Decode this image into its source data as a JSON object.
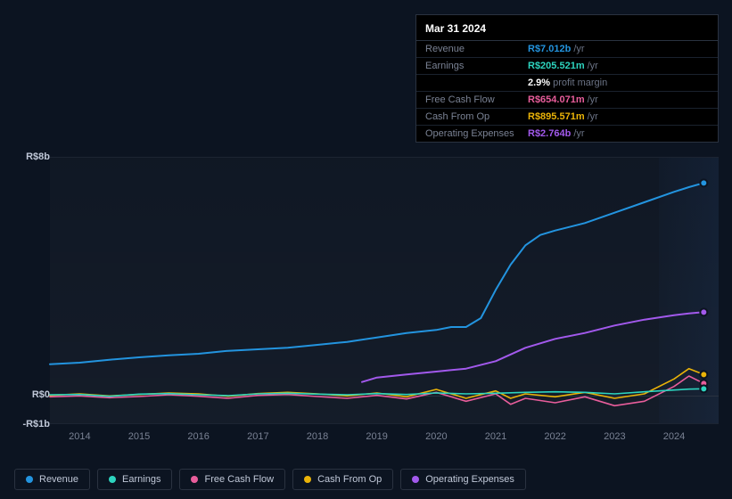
{
  "tooltip": {
    "date": "Mar 31 2024",
    "rows": [
      {
        "label": "Revenue",
        "value": "R$7.012b",
        "unit": "/yr",
        "color": "#2394df"
      },
      {
        "label": "Earnings",
        "value": "R$205.521m",
        "unit": "/yr",
        "color": "#2dd4bf"
      },
      {
        "label": "",
        "value": "2.9%",
        "unit": "profit margin",
        "color": "#ffffff"
      },
      {
        "label": "Free Cash Flow",
        "value": "R$654.071m",
        "unit": "/yr",
        "color": "#e85d9b"
      },
      {
        "label": "Cash From Op",
        "value": "R$895.571m",
        "unit": "/yr",
        "color": "#eab308"
      },
      {
        "label": "Operating Expenses",
        "value": "R$2.764b",
        "unit": "/yr",
        "color": "#a259ec"
      }
    ]
  },
  "chart": {
    "type": "line",
    "background_color": "#0c1421",
    "plot_bg": "rgba(255,255,255,0.02)",
    "grid_color": "#1c2432",
    "y_axis": {
      "min": -1,
      "max": 8,
      "ticks": [
        {
          "v": 8,
          "label": "R$8b"
        },
        {
          "v": 0,
          "label": "R$0"
        },
        {
          "v": -1,
          "label": "-R$1b"
        }
      ]
    },
    "x_axis": {
      "min": 2013.5,
      "max": 2024.75,
      "ticks": [
        2014,
        2015,
        2016,
        2017,
        2018,
        2019,
        2020,
        2021,
        2022,
        2023,
        2024
      ]
    },
    "future_from": 2023.75,
    "series": [
      {
        "name": "Revenue",
        "color": "#2394df",
        "width": 2,
        "points": [
          [
            2013.5,
            1.05
          ],
          [
            2014,
            1.1
          ],
          [
            2014.5,
            1.2
          ],
          [
            2015,
            1.28
          ],
          [
            2015.5,
            1.35
          ],
          [
            2016,
            1.4
          ],
          [
            2016.5,
            1.5
          ],
          [
            2017,
            1.55
          ],
          [
            2017.5,
            1.6
          ],
          [
            2018,
            1.7
          ],
          [
            2018.5,
            1.8
          ],
          [
            2019,
            1.95
          ],
          [
            2019.5,
            2.1
          ],
          [
            2020,
            2.2
          ],
          [
            2020.25,
            2.3
          ],
          [
            2020.5,
            2.3
          ],
          [
            2020.75,
            2.6
          ],
          [
            2021,
            3.55
          ],
          [
            2021.25,
            4.4
          ],
          [
            2021.5,
            5.05
          ],
          [
            2021.75,
            5.4
          ],
          [
            2022,
            5.55
          ],
          [
            2022.5,
            5.8
          ],
          [
            2023,
            6.15
          ],
          [
            2023.5,
            6.5
          ],
          [
            2024,
            6.85
          ],
          [
            2024.25,
            7.01
          ],
          [
            2024.5,
            7.15
          ]
        ]
      },
      {
        "name": "Operating Expenses",
        "color": "#a259ec",
        "width": 2,
        "points": [
          [
            2018.75,
            0.45
          ],
          [
            2019,
            0.6
          ],
          [
            2019.5,
            0.7
          ],
          [
            2020,
            0.8
          ],
          [
            2020.5,
            0.9
          ],
          [
            2021,
            1.15
          ],
          [
            2021.5,
            1.6
          ],
          [
            2022,
            1.9
          ],
          [
            2022.5,
            2.1
          ],
          [
            2023,
            2.35
          ],
          [
            2023.5,
            2.55
          ],
          [
            2024,
            2.7
          ],
          [
            2024.25,
            2.76
          ],
          [
            2024.5,
            2.8
          ]
        ]
      },
      {
        "name": "Cash From Op",
        "color": "#eab308",
        "width": 1.6,
        "points": [
          [
            2013.5,
            0.0
          ],
          [
            2014,
            0.05
          ],
          [
            2014.5,
            -0.02
          ],
          [
            2015,
            0.03
          ],
          [
            2015.5,
            0.08
          ],
          [
            2016,
            0.05
          ],
          [
            2016.5,
            -0.03
          ],
          [
            2017,
            0.06
          ],
          [
            2017.5,
            0.1
          ],
          [
            2018,
            0.05
          ],
          [
            2018.5,
            -0.02
          ],
          [
            2019,
            0.08
          ],
          [
            2019.5,
            -0.05
          ],
          [
            2020,
            0.2
          ],
          [
            2020.5,
            -0.1
          ],
          [
            2021,
            0.15
          ],
          [
            2021.25,
            -0.1
          ],
          [
            2021.5,
            0.05
          ],
          [
            2022,
            -0.05
          ],
          [
            2022.5,
            0.1
          ],
          [
            2023,
            -0.1
          ],
          [
            2023.5,
            0.05
          ],
          [
            2024,
            0.55
          ],
          [
            2024.25,
            0.9
          ],
          [
            2024.5,
            0.7
          ]
        ]
      },
      {
        "name": "Free Cash Flow",
        "color": "#e85d9b",
        "width": 1.6,
        "points": [
          [
            2013.5,
            -0.05
          ],
          [
            2014,
            -0.02
          ],
          [
            2014.5,
            -0.08
          ],
          [
            2015,
            -0.04
          ],
          [
            2015.5,
            0.02
          ],
          [
            2016,
            -0.03
          ],
          [
            2016.5,
            -0.1
          ],
          [
            2017,
            0.0
          ],
          [
            2017.5,
            0.03
          ],
          [
            2018,
            -0.04
          ],
          [
            2018.5,
            -0.1
          ],
          [
            2019,
            0.0
          ],
          [
            2019.5,
            -0.12
          ],
          [
            2020,
            0.1
          ],
          [
            2020.5,
            -0.2
          ],
          [
            2021,
            0.05
          ],
          [
            2021.25,
            -0.3
          ],
          [
            2021.5,
            -0.1
          ],
          [
            2022,
            -0.25
          ],
          [
            2022.5,
            -0.05
          ],
          [
            2023,
            -0.35
          ],
          [
            2023.5,
            -0.2
          ],
          [
            2024,
            0.3
          ],
          [
            2024.25,
            0.65
          ],
          [
            2024.5,
            0.4
          ]
        ]
      },
      {
        "name": "Earnings",
        "color": "#2dd4bf",
        "width": 1.6,
        "points": [
          [
            2013.5,
            0.02
          ],
          [
            2014,
            0.03
          ],
          [
            2014.5,
            -0.03
          ],
          [
            2015,
            0.04
          ],
          [
            2015.5,
            0.06
          ],
          [
            2016,
            0.02
          ],
          [
            2016.5,
            -0.01
          ],
          [
            2017,
            0.05
          ],
          [
            2017.5,
            0.07
          ],
          [
            2018,
            0.04
          ],
          [
            2018.5,
            0.02
          ],
          [
            2019,
            0.06
          ],
          [
            2019.5,
            0.03
          ],
          [
            2020,
            0.08
          ],
          [
            2020.5,
            0.05
          ],
          [
            2021,
            0.07
          ],
          [
            2021.5,
            0.1
          ],
          [
            2022,
            0.12
          ],
          [
            2022.5,
            0.1
          ],
          [
            2023,
            0.05
          ],
          [
            2023.5,
            0.12
          ],
          [
            2024,
            0.18
          ],
          [
            2024.25,
            0.21
          ],
          [
            2024.5,
            0.22
          ]
        ]
      }
    ],
    "legend_order": [
      "Revenue",
      "Earnings",
      "Free Cash Flow",
      "Cash From Op",
      "Operating Expenses"
    ]
  }
}
